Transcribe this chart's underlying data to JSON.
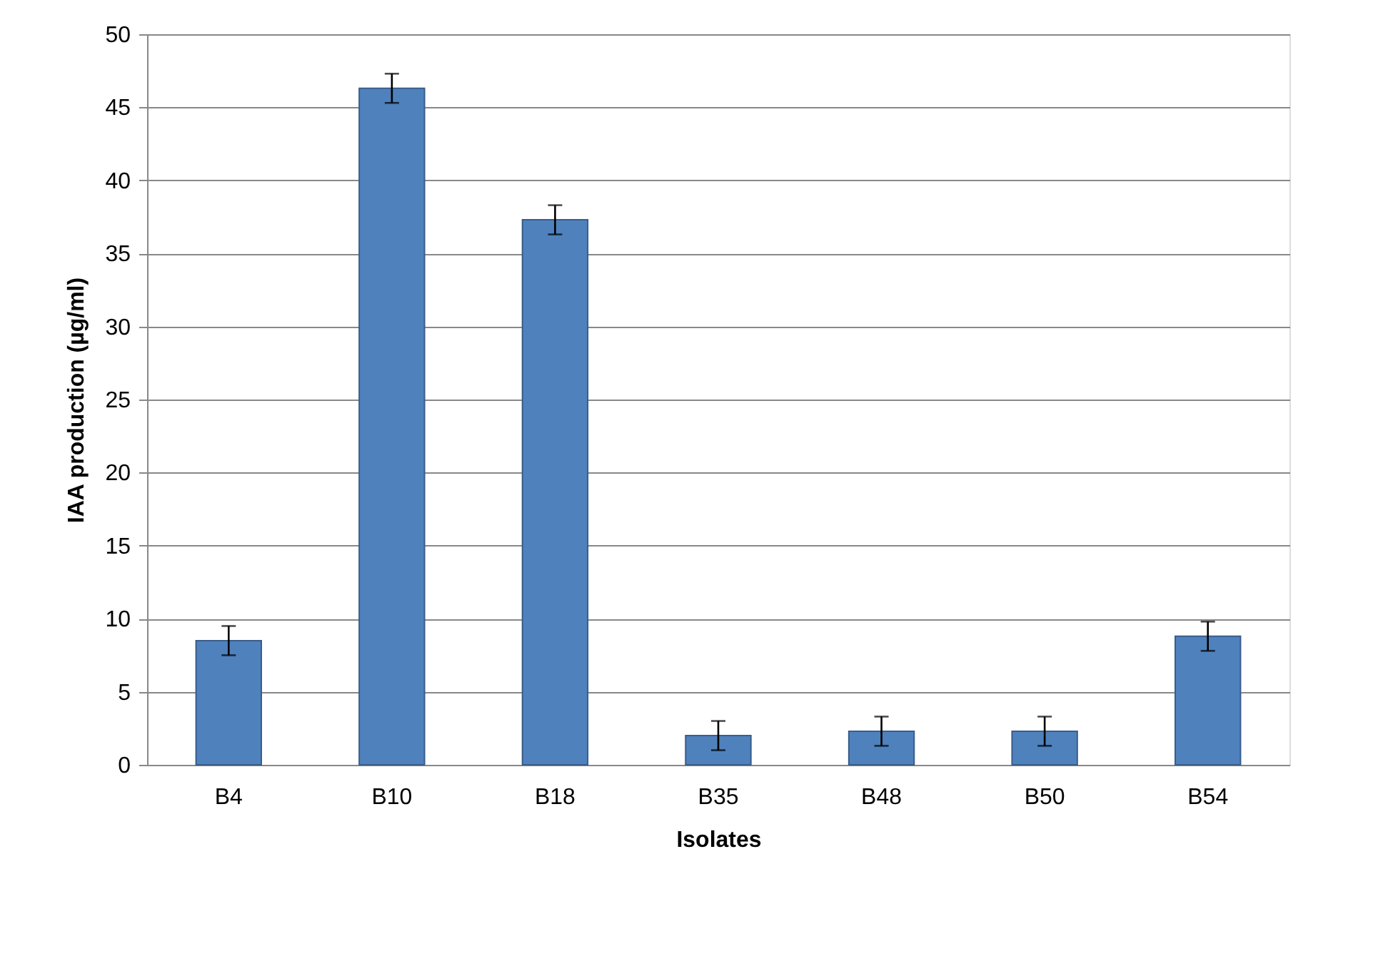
{
  "chart_data": {
    "type": "bar",
    "xlabel": "Isolates",
    "ylabel": "IAA production (µg/ml)",
    "categories": [
      "B4",
      "B10",
      "B18",
      "B35",
      "B48",
      "B50",
      "B54"
    ],
    "values": [
      8.5,
      46.3,
      37.3,
      2.0,
      2.3,
      2.3,
      8.8
    ],
    "errors": [
      1,
      1,
      1,
      1,
      1,
      1,
      1
    ],
    "color": "#4f81bd",
    "ylim": [
      0,
      50
    ],
    "yticks": [
      0,
      5,
      10,
      15,
      20,
      25,
      30,
      35,
      40,
      45,
      50
    ],
    "grid": "y"
  }
}
